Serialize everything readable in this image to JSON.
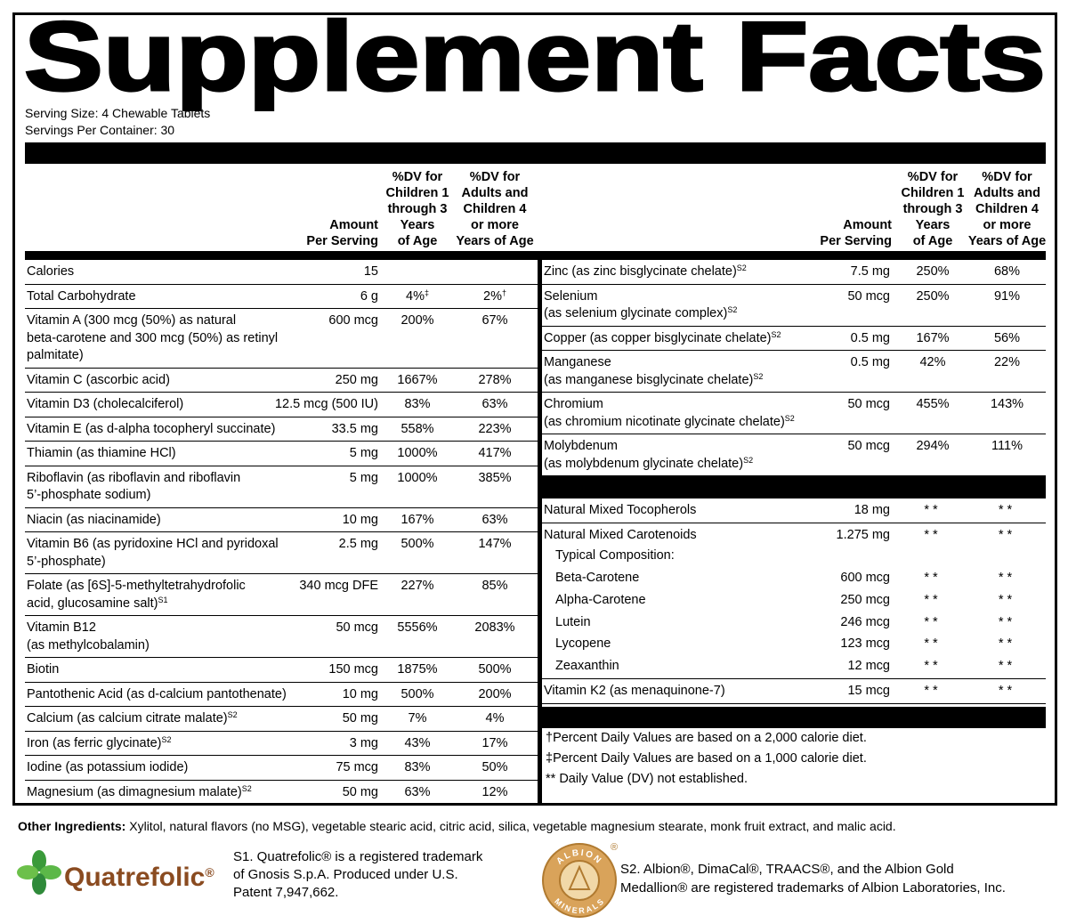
{
  "title": "Supplement Facts",
  "serving_size": "Serving Size: 4 Chewable Tablets",
  "servings_per_container": "Servings Per Container: 30",
  "columns": {
    "amount": "Amount\nPer Serving",
    "children": "%DV for\nChildren 1\nthrough 3\nYears\nof Age",
    "adults": "%DV for\nAdults and\nChildren 4\nor more\nYears of Age"
  },
  "left_rows": [
    {
      "name": "Calories",
      "amount": "15"
    },
    {
      "name": "Total Carbohydrate",
      "amount": "6 g",
      "children": "4%",
      "children_note": "‡",
      "adults": "2%",
      "adults_note": "†"
    },
    {
      "name": "Vitamin A (300 mcg (50%) as natural\nbeta-carotene and 300 mcg (50%) as retinyl\npalmitate)",
      "amount": "600 mcg",
      "children": "200%",
      "adults": "67%"
    },
    {
      "name": "Vitamin C (ascorbic acid)",
      "amount": "250 mg",
      "children": "1667%",
      "adults": "278%"
    },
    {
      "name": "Vitamin D3 (cholecalciferol)",
      "amount": "12.5 mcg (500 IU)",
      "children": "83%",
      "adults": "63%"
    },
    {
      "name": "Vitamin E (as d-alpha tocopheryl succinate)",
      "amount": "33.5 mg",
      "children": "558%",
      "adults": "223%"
    },
    {
      "name": "Thiamin (as thiamine HCl)",
      "amount": "5 mg",
      "children": "1000%",
      "adults": "417%"
    },
    {
      "name": "Riboflavin (as riboflavin and riboflavin\n5’-phosphate sodium)",
      "amount": "5 mg",
      "children": "1000%",
      "adults": "385%"
    },
    {
      "name": "Niacin (as niacinamide)",
      "amount": "10 mg",
      "children": "167%",
      "adults": "63%"
    },
    {
      "name": "Vitamin B6 (as pyridoxine HCl and pyridoxal\n5’-phosphate)",
      "amount": "2.5 mg",
      "children": "500%",
      "adults": "147%"
    },
    {
      "name": "Folate (as [6S]-5-methyltetrahydrofolic\nacid, glucosamine salt)",
      "name_note": "S1",
      "amount": "340 mcg DFE",
      "children": "227%",
      "adults": "85%"
    },
    {
      "name": "Vitamin B12\n(as methylcobalamin)",
      "amount": "50 mcg",
      "children": "5556%",
      "adults": "2083%"
    },
    {
      "name": "Biotin",
      "amount": "150 mcg",
      "children": "1875%",
      "adults": "500%"
    },
    {
      "name": "Pantothenic Acid (as d-calcium pantothenate)",
      "amount": "10 mg",
      "children": "500%",
      "adults": "200%"
    },
    {
      "name": "Calcium (as calcium citrate malate)",
      "name_note": "S2",
      "amount": "50 mg",
      "children": "7%",
      "adults": "4%"
    },
    {
      "name": "Iron (as ferric glycinate)",
      "name_note": "S2",
      "amount": "3 mg",
      "children": "43%",
      "adults": "17%"
    },
    {
      "name": "Iodine (as potassium iodide)",
      "amount": "75 mcg",
      "children": "83%",
      "adults": "50%"
    },
    {
      "name": "Magnesium (as dimagnesium malate)",
      "name_note": "S2",
      "amount": "50 mg",
      "children": "63%",
      "adults": "12%"
    }
  ],
  "right_rows": [
    {
      "name": "Zinc (as zinc bisglycinate chelate)",
      "name_note": "S2",
      "amount": "7.5 mg",
      "children": "250%",
      "adults": "68%"
    },
    {
      "name": "Selenium\n(as selenium glycinate complex)",
      "name_note": "S2",
      "amount": "50 mcg",
      "children": "250%",
      "adults": "91%"
    },
    {
      "name": "Copper (as copper bisglycinate chelate)",
      "name_note": "S2",
      "amount": "0.5 mg",
      "children": "167%",
      "adults": "56%"
    },
    {
      "name": "Manganese\n(as manganese bisglycinate chelate)",
      "name_note": "S2",
      "amount": "0.5 mg",
      "children": "42%",
      "adults": "22%"
    },
    {
      "name": "Chromium\n(as chromium nicotinate glycinate chelate)",
      "name_note": "S2",
      "amount": "50 mcg",
      "children": "455%",
      "adults": "143%"
    },
    {
      "name": "Molybdenum\n(as molybdenum glycinate chelate)",
      "name_note": "S2",
      "amount": "50 mcg",
      "children": "294%",
      "adults": "111%"
    }
  ],
  "other_rows": [
    {
      "name": "Natural Mixed Tocopherols",
      "amount": "18 mg",
      "children": "**",
      "adults": "**"
    },
    {
      "name": "Natural Mixed Carotenoids",
      "amount": "1.275 mg",
      "children": "**",
      "adults": "**",
      "composition": {
        "label": "Typical Composition:",
        "items": [
          {
            "name": "Beta-Carotene",
            "amount": "600 mcg",
            "children": "**",
            "adults": "**"
          },
          {
            "name": "Alpha-Carotene",
            "amount": "250 mcg",
            "children": "**",
            "adults": "**"
          },
          {
            "name": "Lutein",
            "amount": "246 mcg",
            "children": "**",
            "adults": "**"
          },
          {
            "name": "Lycopene",
            "amount": "123 mcg",
            "children": "**",
            "adults": "**"
          },
          {
            "name": "Zeaxanthin",
            "amount": "12 mcg",
            "children": "**",
            "adults": "**"
          }
        ]
      }
    },
    {
      "name": "Vitamin K2 (as menaquinone-7)",
      "amount": "15 mcg",
      "children": "**",
      "adults": "**"
    }
  ],
  "footnotes": [
    "†Percent Daily Values are based on a 2,000 calorie diet.",
    "‡Percent Daily Values are based on a 1,000 calorie diet.",
    "** Daily Value (DV) not established."
  ],
  "other_ingredients": {
    "label": "Other Ingredients:",
    "text": "Xylitol, natural flavors (no MSG), vegetable stearic acid, citric acid, silica, vegetable magnesium stearate, monk fruit extract, and malic acid."
  },
  "quatrefolic": {
    "logo": "Quatrefolic",
    "logo_mark": "®",
    "note": "S1. Quatrefolic® is a registered trademark\nof Gnosis S.p.A. Produced under U.S.\nPatent 7,947,662."
  },
  "albion": {
    "logo_top": "ALBION",
    "logo_bottom": "MINERALS",
    "logo_mark": "®",
    "note": "S2. Albion®, DimaCal®, TRAACS®, and the Albion Gold\nMedallion® are registered trademarks of Albion Laboratories, Inc."
  }
}
